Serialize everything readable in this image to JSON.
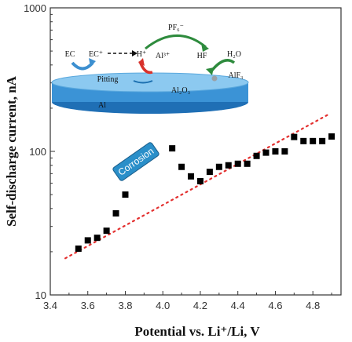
{
  "chart_data": {
    "type": "scatter",
    "xlabel": "Potential vs. Li⁺/Li, V",
    "ylabel": "Self-discharge current, nA",
    "y_scale": "log",
    "xlim": [
      3.4,
      4.95
    ],
    "ylim": [
      10,
      1000
    ],
    "x_ticks": [
      "3.4",
      "3.6",
      "3.8",
      "4.0",
      "4.2",
      "4.4",
      "4.6",
      "4.8"
    ],
    "y_ticks": [
      "10",
      "100",
      "1000"
    ],
    "points": {
      "x": [
        3.55,
        3.6,
        3.65,
        3.7,
        3.75,
        3.8,
        4.05,
        4.1,
        4.15,
        4.2,
        4.25,
        4.3,
        4.35,
        4.4,
        4.45,
        4.5,
        4.55,
        4.6,
        4.65,
        4.7,
        4.75,
        4.8,
        4.85,
        4.9
      ],
      "y": [
        21,
        24,
        25,
        28,
        37,
        50,
        105,
        78,
        67,
        62,
        72,
        78,
        80,
        82,
        82,
        93,
        98,
        100,
        100,
        126,
        118,
        118,
        118,
        127
      ]
    },
    "trendline": {
      "x": [
        3.48,
        4.88
      ],
      "y": [
        18,
        180
      ],
      "style": "dotted",
      "color": "#e3302f"
    },
    "annotation": "Corrosion",
    "inset": {
      "labels": {
        "ec": "EC",
        "ec_plus": "EC⁺",
        "h_plus": "H⁺",
        "pf6": "PF₆⁻",
        "al3": "Al³⁺",
        "hf": "HF",
        "h2o": "H₂O",
        "pitting": "Pitting",
        "al2o3": "Al₂O₃",
        "alf3": "AlF₃",
        "al": "Al"
      }
    },
    "colors": {
      "markers": "#000000",
      "trend": "#e3302f",
      "corrosion_badge": "#2a8fc9",
      "al_layer": "#3b93d6"
    }
  }
}
